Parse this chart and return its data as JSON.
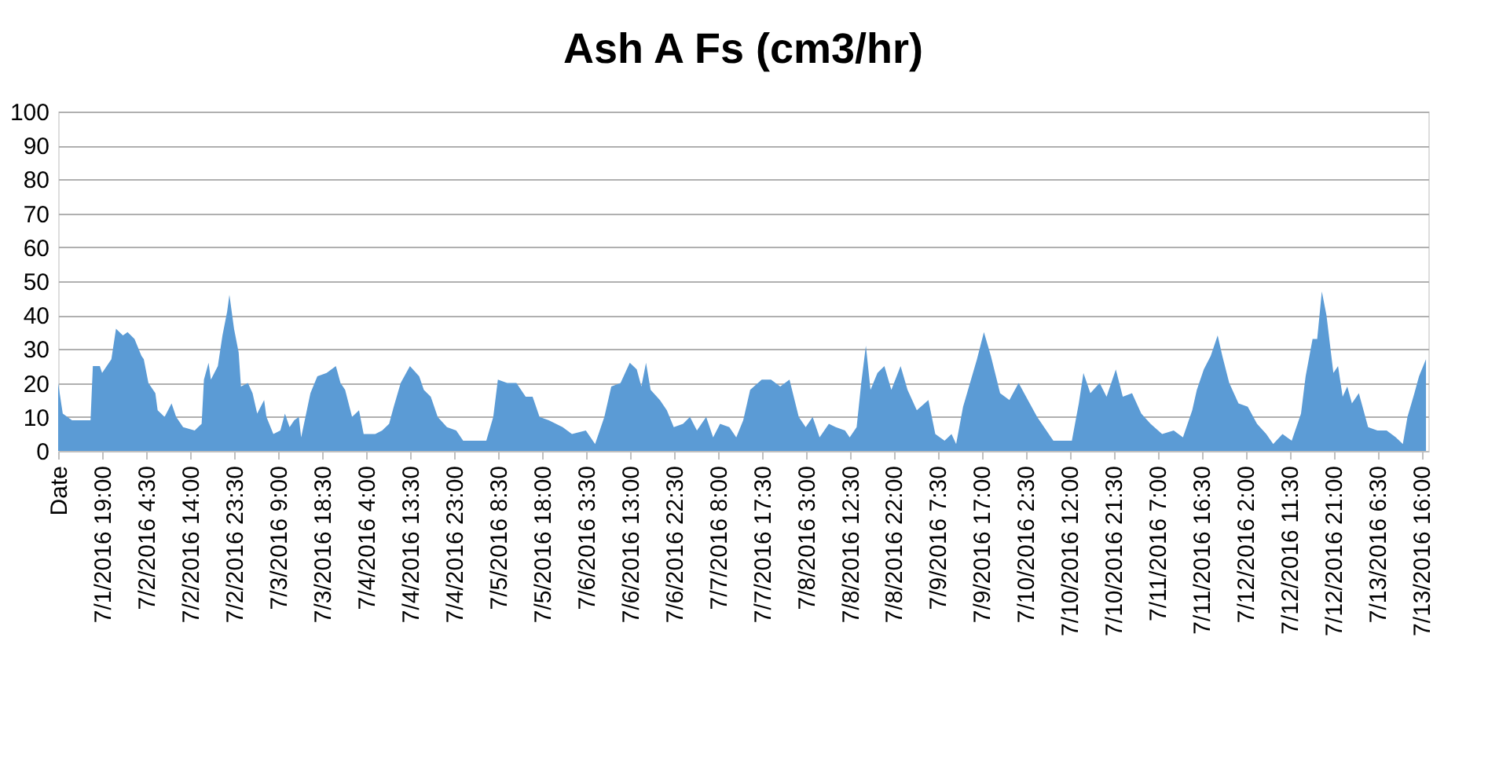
{
  "chart_data": {
    "type": "area",
    "title": "Ash A Fs (cm3/hr)",
    "x": [
      "2016-07-01T09:30",
      "2016-07-01T10:30",
      "2016-07-01T12:30",
      "2016-07-01T14:30",
      "2016-07-01T16:30",
      "2016-07-01T17:00",
      "2016-07-01T18:30",
      "2016-07-01T19:00",
      "2016-07-01T21:00",
      "2016-07-01T22:00",
      "2016-07-01T23:30",
      "2016-07-02T00:30",
      "2016-07-02T02:00",
      "2016-07-02T03:30",
      "2016-07-02T04:00",
      "2016-07-02T05:00",
      "2016-07-02T06:30",
      "2016-07-02T07:00",
      "2016-07-02T08:30",
      "2016-07-02T10:00",
      "2016-07-02T11:00",
      "2016-07-02T12:30",
      "2016-07-02T15:00",
      "2016-07-02T16:30",
      "2016-07-02T17:00",
      "2016-07-02T18:00",
      "2016-07-02T18:30",
      "2016-07-02T20:00",
      "2016-07-02T21:00",
      "2016-07-02T22:00",
      "2016-07-02T22:30",
      "2016-07-02T23:30",
      "2016-07-03T00:30",
      "2016-07-03T01:00",
      "2016-07-03T02:30",
      "2016-07-03T03:30",
      "2016-07-03T04:30",
      "2016-07-03T06:00",
      "2016-07-03T06:30",
      "2016-07-03T08:00",
      "2016-07-03T09:30",
      "2016-07-03T10:30",
      "2016-07-03T11:30",
      "2016-07-03T12:30",
      "2016-07-03T13:30",
      "2016-07-03T14:00",
      "2016-07-03T16:00",
      "2016-07-03T17:30",
      "2016-07-03T19:30",
      "2016-07-03T21:30",
      "2016-07-03T22:30",
      "2016-07-03T23:30",
      "2016-07-04T01:00",
      "2016-07-04T02:30",
      "2016-07-04T03:30",
      "2016-07-04T06:00",
      "2016-07-04T07:30",
      "2016-07-04T09:00",
      "2016-07-04T10:00",
      "2016-07-04T11:30",
      "2016-07-04T13:30",
      "2016-07-04T15:30",
      "2016-07-04T16:30",
      "2016-07-04T18:00",
      "2016-07-04T19:30",
      "2016-07-04T21:30",
      "2016-07-04T23:30",
      "2016-07-05T01:00",
      "2016-07-05T06:00",
      "2016-07-05T07:30",
      "2016-07-05T08:30",
      "2016-07-05T10:30",
      "2016-07-05T12:30",
      "2016-07-05T14:30",
      "2016-07-05T16:00",
      "2016-07-05T17:30",
      "2016-07-05T19:30",
      "2016-07-05T22:30",
      "2016-07-06T00:30",
      "2016-07-06T03:30",
      "2016-07-06T05:30",
      "2016-07-06T07:30",
      "2016-07-06T09:00",
      "2016-07-06T11:00",
      "2016-07-06T13:00",
      "2016-07-06T14:30",
      "2016-07-06T15:30",
      "2016-07-06T16:30",
      "2016-07-06T17:30",
      "2016-07-06T19:30",
      "2016-07-06T21:00",
      "2016-07-06T22:30",
      "2016-07-07T00:30",
      "2016-07-07T02:00",
      "2016-07-07T03:30",
      "2016-07-07T05:30",
      "2016-07-07T07:00",
      "2016-07-07T08:30",
      "2016-07-07T10:30",
      "2016-07-07T12:00",
      "2016-07-07T13:30",
      "2016-07-07T15:00",
      "2016-07-07T17:30",
      "2016-07-07T19:30",
      "2016-07-07T21:30",
      "2016-07-07T23:30",
      "2016-07-08T01:30",
      "2016-07-08T03:00",
      "2016-07-08T04:30",
      "2016-07-08T06:00",
      "2016-07-08T08:00",
      "2016-07-08T09:30",
      "2016-07-08T11:30",
      "2016-07-08T12:30",
      "2016-07-08T14:00",
      "2016-07-08T15:00",
      "2016-07-08T16:00",
      "2016-07-08T17:00",
      "2016-07-08T18:30",
      "2016-07-08T20:00",
      "2016-07-08T21:30",
      "2016-07-08T23:30",
      "2016-07-09T01:00",
      "2016-07-09T03:00",
      "2016-07-09T05:30",
      "2016-07-09T07:00",
      "2016-07-09T09:00",
      "2016-07-09T10:30",
      "2016-07-09T11:30",
      "2016-07-09T13:00",
      "2016-07-09T14:30",
      "2016-07-09T16:00",
      "2016-07-09T17:30",
      "2016-07-09T19:00",
      "2016-07-09T21:00",
      "2016-07-09T23:00",
      "2016-07-10T01:00",
      "2016-07-10T03:00",
      "2016-07-10T05:00",
      "2016-07-10T06:30",
      "2016-07-10T08:30",
      "2016-07-10T12:30",
      "2016-07-10T14:00",
      "2016-07-10T15:00",
      "2016-07-10T16:30",
      "2016-07-10T18:30",
      "2016-07-10T20:00",
      "2016-07-10T22:00",
      "2016-07-10T23:30",
      "2016-07-11T01:30",
      "2016-07-11T03:30",
      "2016-07-11T05:30",
      "2016-07-11T08:00",
      "2016-07-11T10:30",
      "2016-07-11T12:30",
      "2016-07-11T14:30",
      "2016-07-11T15:30",
      "2016-07-11T17:00",
      "2016-07-11T18:30",
      "2016-07-11T20:00",
      "2016-07-11T21:00",
      "2016-07-11T22:30",
      "2016-07-12T00:30",
      "2016-07-12T02:30",
      "2016-07-12T04:30",
      "2016-07-12T06:30",
      "2016-07-12T08:00",
      "2016-07-12T10:00",
      "2016-07-12T12:00",
      "2016-07-12T14:00",
      "2016-07-12T15:00",
      "2016-07-12T16:30",
      "2016-07-12T17:30",
      "2016-07-12T18:30",
      "2016-07-12T19:30",
      "2016-07-12T21:00",
      "2016-07-12T22:00",
      "2016-07-12T23:00",
      "2016-07-13T00:00",
      "2016-07-13T01:00",
      "2016-07-13T02:30",
      "2016-07-13T04:30",
      "2016-07-13T06:30",
      "2016-07-13T08:30",
      "2016-07-13T10:30",
      "2016-07-13T12:00",
      "2016-07-13T13:00",
      "2016-07-13T14:30",
      "2016-07-13T15:30",
      "2016-07-13T17:00"
    ],
    "series": [
      {
        "color": "#5b9bd5",
        "values": [
          20,
          11,
          9,
          9,
          9,
          25,
          25,
          23,
          27,
          36,
          34,
          35,
          33,
          28,
          27,
          20,
          17,
          12,
          10,
          14,
          10,
          7,
          6,
          8,
          21,
          26,
          21,
          25,
          34,
          41,
          46,
          36,
          29,
          19,
          20,
          17,
          11,
          15,
          10,
          5,
          6,
          11,
          7,
          9,
          10,
          4,
          17,
          22,
          23,
          25,
          20,
          18,
          10,
          12,
          5,
          5,
          6,
          8,
          13,
          20,
          25,
          22,
          18,
          16,
          10,
          7,
          6,
          3,
          3,
          10,
          21,
          20,
          20,
          16,
          16,
          10,
          9,
          7,
          5,
          6,
          2,
          10,
          19,
          20,
          26,
          24,
          19,
          26,
          18,
          15,
          12,
          7,
          8,
          10,
          6,
          10,
          4,
          8,
          7,
          4,
          9,
          18,
          21,
          21,
          19,
          21,
          10,
          7,
          10,
          4,
          8,
          7,
          6,
          4,
          7,
          20,
          31,
          18,
          23,
          25,
          18,
          25,
          18,
          12,
          15,
          5,
          3,
          5,
          2,
          13,
          20,
          27,
          35,
          28,
          17,
          15,
          20,
          15,
          10,
          7,
          3,
          3,
          14,
          23,
          17,
          20,
          16,
          24,
          16,
          17,
          11,
          8,
          5,
          6,
          4,
          12,
          18,
          24,
          28,
          34,
          28,
          20,
          14,
          13,
          8,
          5,
          2,
          5,
          3,
          11,
          22,
          33,
          33,
          47,
          40,
          23,
          25,
          16,
          19,
          14,
          17,
          7,
          6,
          6,
          4,
          2,
          10,
          17,
          22,
          27
        ]
      }
    ],
    "xlim": [
      "2016-07-01T09:30",
      "2016-07-13T17:30"
    ],
    "xticks": [
      {
        "value": "2016-07-01T09:30",
        "label": "Date"
      },
      {
        "value": "2016-07-01T19:00",
        "label": "7/1/2016 19:00"
      },
      {
        "value": "2016-07-02T04:30",
        "label": "7/2/2016 4:30"
      },
      {
        "value": "2016-07-02T14:00",
        "label": "7/2/2016 14:00"
      },
      {
        "value": "2016-07-02T23:30",
        "label": "7/2/2016 23:30"
      },
      {
        "value": "2016-07-03T09:00",
        "label": "7/3/2016 9:00"
      },
      {
        "value": "2016-07-03T18:30",
        "label": "7/3/2016 18:30"
      },
      {
        "value": "2016-07-04T04:00",
        "label": "7/4/2016 4:00"
      },
      {
        "value": "2016-07-04T13:30",
        "label": "7/4/2016 13:30"
      },
      {
        "value": "2016-07-04T23:00",
        "label": "7/4/2016 23:00"
      },
      {
        "value": "2016-07-05T08:30",
        "label": "7/5/2016 8:30"
      },
      {
        "value": "2016-07-05T18:00",
        "label": "7/5/2016 18:00"
      },
      {
        "value": "2016-07-06T03:30",
        "label": "7/6/2016 3:30"
      },
      {
        "value": "2016-07-06T13:00",
        "label": "7/6/2016 13:00"
      },
      {
        "value": "2016-07-06T22:30",
        "label": "7/6/2016 22:30"
      },
      {
        "value": "2016-07-07T08:00",
        "label": "7/7/2016 8:00"
      },
      {
        "value": "2016-07-07T17:30",
        "label": "7/7/2016 17:30"
      },
      {
        "value": "2016-07-08T03:00",
        "label": "7/8/2016 3:00"
      },
      {
        "value": "2016-07-08T12:30",
        "label": "7/8/2016 12:30"
      },
      {
        "value": "2016-07-08T22:00",
        "label": "7/8/2016 22:00"
      },
      {
        "value": "2016-07-09T07:30",
        "label": "7/9/2016 7:30"
      },
      {
        "value": "2016-07-09T17:00",
        "label": "7/9/2016 17:00"
      },
      {
        "value": "2016-07-10T02:30",
        "label": "7/10/2016 2:30"
      },
      {
        "value": "2016-07-10T12:00",
        "label": "7/10/2016 12:00"
      },
      {
        "value": "2016-07-10T21:30",
        "label": "7/10/2016 21:30"
      },
      {
        "value": "2016-07-11T07:00",
        "label": "7/11/2016 7:00"
      },
      {
        "value": "2016-07-11T16:30",
        "label": "7/11/2016 16:30"
      },
      {
        "value": "2016-07-12T02:00",
        "label": "7/12/2016 2:00"
      },
      {
        "value": "2016-07-12T11:30",
        "label": "7/12/2016 11:30"
      },
      {
        "value": "2016-07-12T21:00",
        "label": "7/12/2016 21:00"
      },
      {
        "value": "2016-07-13T06:30",
        "label": "7/13/2016 6:30"
      },
      {
        "value": "2016-07-13T16:00",
        "label": "7/13/2016 16:00"
      }
    ],
    "ylim": [
      0,
      100
    ],
    "yticks": [
      0,
      10,
      20,
      30,
      40,
      50,
      60,
      70,
      80,
      90,
      100
    ],
    "grid": "y"
  }
}
